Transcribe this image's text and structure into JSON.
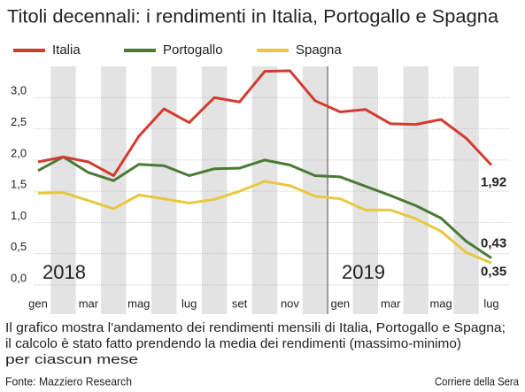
{
  "chart_data": {
    "type": "line",
    "title": "Titoli decennali: i rendimenti in Italia, Portogallo e Spagna",
    "categories": [
      "gen",
      null,
      "mar",
      null,
      "mag",
      null,
      "lug",
      null,
      "set",
      null,
      "nov",
      null,
      "gen",
      null,
      "mar",
      null,
      "mag",
      null,
      "lug"
    ],
    "year_labels": [
      "2018",
      "2019"
    ],
    "series": [
      {
        "name": "Italia",
        "color": "#d43a2f",
        "values": [
          1.97,
          2.05,
          1.97,
          1.75,
          2.38,
          2.82,
          2.6,
          3.0,
          2.93,
          3.42,
          3.43,
          2.95,
          2.77,
          2.81,
          2.58,
          2.57,
          2.65,
          2.35,
          1.92
        ],
        "value_labels": [
          null,
          null,
          null,
          null,
          null,
          null,
          null,
          null,
          null,
          null,
          null,
          null,
          null,
          null,
          null,
          null,
          null,
          null,
          "1,92"
        ]
      },
      {
        "name": "Portogallo",
        "color": "#4a7a35",
        "values": [
          1.83,
          2.05,
          1.8,
          1.67,
          1.93,
          1.91,
          1.75,
          1.86,
          1.87,
          2.0,
          1.92,
          1.75,
          1.73,
          1.58,
          1.43,
          1.27,
          1.07,
          0.7,
          0.43
        ],
        "value_labels": [
          null,
          null,
          null,
          null,
          null,
          null,
          null,
          null,
          null,
          null,
          null,
          null,
          null,
          null,
          null,
          null,
          null,
          null,
          "0,43"
        ]
      },
      {
        "name": "Spagna",
        "color": "#e8c840",
        "values": [
          1.47,
          1.48,
          1.35,
          1.22,
          1.44,
          1.38,
          1.31,
          1.37,
          1.5,
          1.66,
          1.59,
          1.42,
          1.38,
          1.2,
          1.2,
          1.06,
          0.86,
          0.52,
          0.35
        ],
        "value_labels": [
          null,
          null,
          null,
          null,
          null,
          null,
          null,
          null,
          null,
          null,
          null,
          null,
          null,
          null,
          null,
          null,
          null,
          null,
          "0,35"
        ]
      }
    ],
    "ylim": [
      0,
      3.5
    ],
    "yticks": [
      {
        "value": 0,
        "label": "0,0"
      },
      {
        "value": 0.5,
        "label": "0,5"
      },
      {
        "value": 1,
        "label": "1,0"
      },
      {
        "value": 1.5,
        "label": "1,5"
      },
      {
        "value": 2,
        "label": "2,0"
      },
      {
        "value": 2.5,
        "label": "2,5"
      },
      {
        "value": 3,
        "label": "3,0"
      }
    ],
    "grid": true,
    "note_lines": [
      "Il grafico mostra l'andamento dei rendimenti mensili di Italia, Portogallo e Spagna;",
      "il calcolo è stato fatto prendendo la media dei rendimenti (massimo-minimo)",
      "per ciascun mese"
    ],
    "source": "Fonte: Mazziero Research",
    "publisher": "Corriere della Sera"
  }
}
